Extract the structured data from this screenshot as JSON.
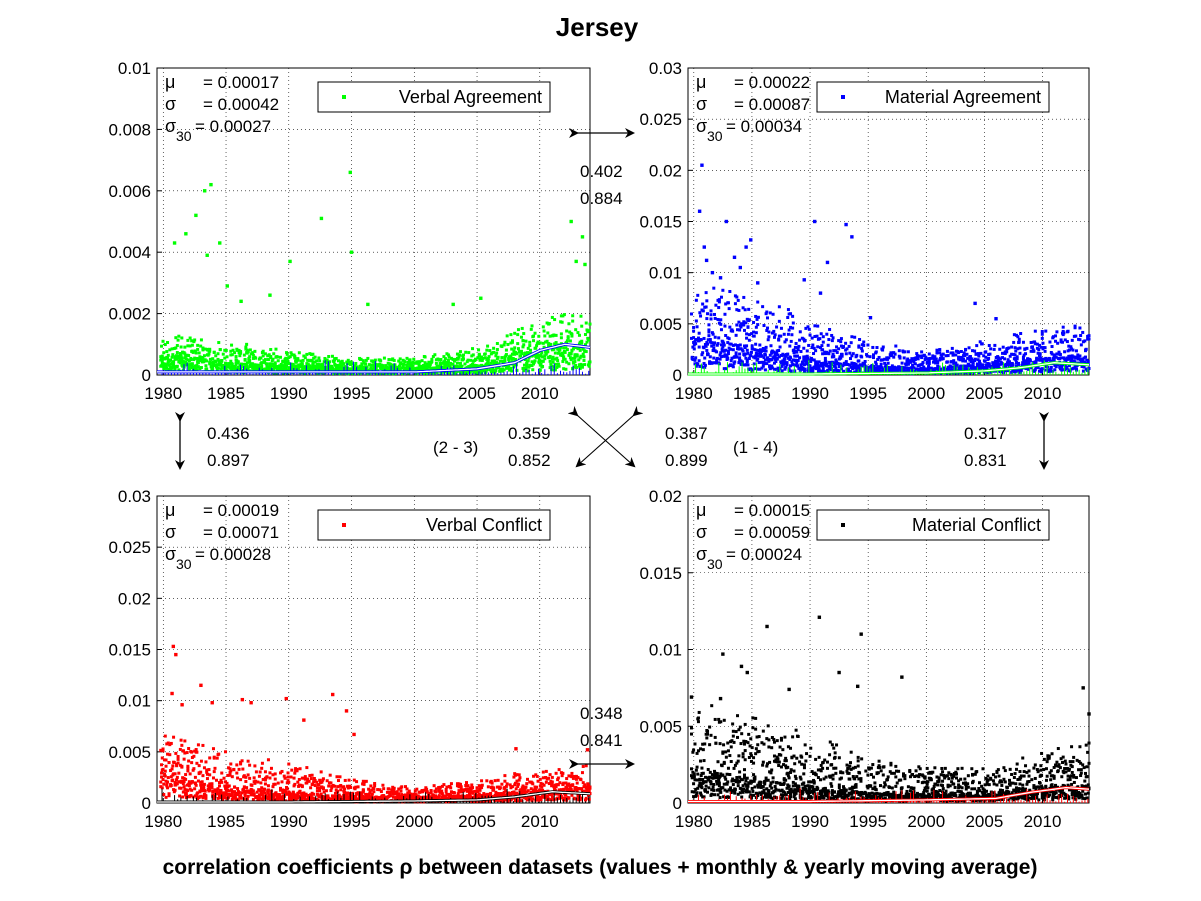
{
  "title": "Jersey",
  "caption": "correlation coefficients ρ between datasets (values + monthly & yearly moving average)",
  "colors": {
    "verbal_agreement": "#00ff00",
    "material_agreement": "#0000ff",
    "verbal_conflict": "#ff0000",
    "material_conflict": "#000000"
  },
  "correlations": {
    "va_ma": {
      "value": "0.402",
      "ma": "0.884"
    },
    "va_vc": {
      "value": "0.436",
      "ma": "0.897"
    },
    "ma_mc": {
      "value": "0.317",
      "ma": "0.831"
    },
    "vc_mc": {
      "value": "0.348",
      "ma": "0.841"
    },
    "diag_2_3": {
      "pair": "(2 - 3)",
      "value": "0.359",
      "ma": "0.852"
    },
    "diag_1_4": {
      "pair": "(1 - 4)",
      "value": "0.387",
      "ma": "0.899"
    }
  },
  "chart_data": [
    {
      "type": "scatter",
      "name": "Verbal Agreement",
      "color": "#00ff00",
      "overlay_color": "#0000ff",
      "xlim": [
        1979.5,
        2014
      ],
      "ylim": [
        0,
        0.01
      ],
      "x_ticks": [
        "1980",
        "1985",
        "1990",
        "1995",
        "2000",
        "2005",
        "2010"
      ],
      "y_ticks": [
        "0",
        "0.002",
        "0.004",
        "0.006",
        "0.008",
        "0.01"
      ],
      "y_tick_values": [
        0,
        0.002,
        0.004,
        0.006,
        0.008,
        0.01
      ],
      "stats": {
        "mu": "= 0.00017",
        "sigma": "= 0.00042",
        "sigma30": "= 0.00027"
      },
      "legend": "Verbal Agreement",
      "outliers": [
        [
          1980.9,
          0.0043
        ],
        [
          1981.8,
          0.0046
        ],
        [
          1982.6,
          0.0052
        ],
        [
          1983.3,
          0.006
        ],
        [
          1983.8,
          0.0062
        ],
        [
          1984.5,
          0.0043
        ],
        [
          1983.5,
          0.0039
        ],
        [
          1985.1,
          0.0029
        ],
        [
          1986.2,
          0.0024
        ],
        [
          1988.5,
          0.0026
        ],
        [
          1990.1,
          0.0037
        ],
        [
          1992.6,
          0.0051
        ],
        [
          1994.9,
          0.0066
        ],
        [
          1995.0,
          0.004
        ],
        [
          1996.3,
          0.0023
        ],
        [
          2003.1,
          0.0023
        ],
        [
          2005.3,
          0.0025
        ],
        [
          2012.5,
          0.005
        ],
        [
          2012.9,
          0.0037
        ],
        [
          2013.4,
          0.0045
        ],
        [
          2013.6,
          0.0036
        ]
      ],
      "bulk": [
        [
          1980,
          0.0006,
          0.0012
        ],
        [
          1985,
          0.0004,
          0.001
        ],
        [
          1990,
          0.0003,
          0.0007
        ],
        [
          1995,
          0.0002,
          0.0005
        ],
        [
          2000,
          0.0002,
          0.0005
        ],
        [
          2005,
          0.0003,
          0.0008
        ],
        [
          2010,
          0.0007,
          0.0016
        ],
        [
          2014,
          0.001,
          0.002
        ]
      ],
      "yearly_ma": [
        [
          1980,
          0.0001
        ],
        [
          1990,
          0.0001
        ],
        [
          2000,
          0.0001
        ],
        [
          2005,
          0.0002
        ],
        [
          2008,
          0.0004
        ],
        [
          2010,
          0.0008
        ],
        [
          2012,
          0.001
        ],
        [
          2014,
          0.0009
        ]
      ]
    },
    {
      "type": "scatter",
      "name": "Material Agreement",
      "color": "#0000ff",
      "overlay_color": "#00ff00",
      "xlim": [
        1979.5,
        2014
      ],
      "ylim": [
        0,
        0.03
      ],
      "x_ticks": [
        "1980",
        "1985",
        "1990",
        "1995",
        "2000",
        "2005",
        "2010"
      ],
      "y_ticks": [
        "0",
        "0.005",
        "0.01",
        "0.015",
        "0.02",
        "0.025",
        "0.03"
      ],
      "y_tick_values": [
        0,
        0.005,
        0.01,
        0.015,
        0.02,
        0.025,
        0.03
      ],
      "stats": {
        "mu": "= 0.00022",
        "sigma": "= 0.00087",
        "sigma30": "= 0.00034"
      },
      "legend": "Material Agreement",
      "outliers": [
        [
          1980.7,
          0.0205
        ],
        [
          1980.5,
          0.016
        ],
        [
          1980.9,
          0.0125
        ],
        [
          1981.1,
          0.0112
        ],
        [
          1981.6,
          0.01
        ],
        [
          1982.3,
          0.0095
        ],
        [
          1982.8,
          0.015
        ],
        [
          1983.5,
          0.0115
        ],
        [
          1984.0,
          0.0105
        ],
        [
          1984.5,
          0.0125
        ],
        [
          1984.9,
          0.0132
        ],
        [
          1985.5,
          0.009
        ],
        [
          1989.5,
          0.0093
        ],
        [
          1990.4,
          0.015
        ],
        [
          1990.9,
          0.008
        ],
        [
          1991.5,
          0.011
        ],
        [
          1993.1,
          0.0147
        ],
        [
          1993.6,
          0.0135
        ],
        [
          1995.2,
          0.0056
        ],
        [
          2004.2,
          0.007
        ],
        [
          2006.0,
          0.0055
        ]
      ],
      "bulk": [
        [
          1980,
          0.0035,
          0.009
        ],
        [
          1985,
          0.0025,
          0.007
        ],
        [
          1990,
          0.0015,
          0.005
        ],
        [
          1995,
          0.0008,
          0.003
        ],
        [
          2000,
          0.0006,
          0.002
        ],
        [
          2005,
          0.001,
          0.003
        ],
        [
          2010,
          0.0015,
          0.004
        ],
        [
          2014,
          0.0018,
          0.0045
        ]
      ],
      "yearly_ma": [
        [
          1980,
          0.0001
        ],
        [
          1990,
          0.0001
        ],
        [
          2000,
          0.0002
        ],
        [
          2005,
          0.0004
        ],
        [
          2008,
          0.0007
        ],
        [
          2011,
          0.0012
        ],
        [
          2014,
          0.001
        ]
      ]
    },
    {
      "type": "scatter",
      "name": "Verbal Conflict",
      "color": "#ff0000",
      "overlay_color": "#000000",
      "xlim": [
        1979.5,
        2014
      ],
      "ylim": [
        0,
        0.03
      ],
      "x_ticks": [
        "1980",
        "1985",
        "1990",
        "1995",
        "2000",
        "2005",
        "2010"
      ],
      "y_ticks": [
        "0",
        "0.005",
        "0.01",
        "0.015",
        "0.02",
        "0.025",
        "0.03"
      ],
      "y_tick_values": [
        0,
        0.005,
        0.01,
        0.015,
        0.02,
        0.025,
        0.03
      ],
      "stats": {
        "mu": "= 0.00019",
        "sigma": "= 0.00071",
        "sigma30": "= 0.00028"
      },
      "legend": "Verbal Conflict",
      "outliers": [
        [
          1980.8,
          0.0153
        ],
        [
          1981.0,
          0.0145
        ],
        [
          1980.7,
          0.0107
        ],
        [
          1981.5,
          0.0096
        ],
        [
          1983.0,
          0.0115
        ],
        [
          1983.9,
          0.0098
        ],
        [
          1986.3,
          0.0101
        ],
        [
          1987.0,
          0.0098
        ],
        [
          1989.8,
          0.0102
        ],
        [
          1991.2,
          0.0081
        ],
        [
          1993.5,
          0.0106
        ],
        [
          1994.6,
          0.009
        ],
        [
          1995.2,
          0.0067
        ],
        [
          2008.1,
          0.0053
        ],
        [
          2013.8,
          0.0052
        ]
      ],
      "bulk": [
        [
          1980,
          0.0025,
          0.006
        ],
        [
          1985,
          0.0015,
          0.0045
        ],
        [
          1990,
          0.001,
          0.0035
        ],
        [
          1995,
          0.0006,
          0.002
        ],
        [
          2000,
          0.0005,
          0.0015
        ],
        [
          2005,
          0.0007,
          0.002
        ],
        [
          2010,
          0.0012,
          0.003
        ],
        [
          2014,
          0.0015,
          0.0035
        ]
      ],
      "yearly_ma": [
        [
          1980,
          0.0001
        ],
        [
          1990,
          0.0001
        ],
        [
          2000,
          0.0002
        ],
        [
          2005,
          0.0003
        ],
        [
          2008,
          0.0006
        ],
        [
          2011,
          0.0011
        ],
        [
          2014,
          0.0009
        ]
      ]
    },
    {
      "type": "scatter",
      "name": "Material Conflict",
      "color": "#000000",
      "overlay_color": "#ff0000",
      "xlim": [
        1979.5,
        2014
      ],
      "ylim": [
        0,
        0.02
      ],
      "x_ticks": [
        "1980",
        "1985",
        "1990",
        "1995",
        "2000",
        "2005",
        "2010"
      ],
      "y_ticks": [
        "0",
        "0.005",
        "0.01",
        "0.015",
        "0.02"
      ],
      "y_tick_values": [
        0,
        0.005,
        0.01,
        0.015,
        0.02
      ],
      "stats": {
        "mu": "= 0.00015",
        "sigma": "= 0.00059",
        "sigma30": "= 0.00024"
      },
      "legend": "Material Conflict",
      "outliers": [
        [
          1979.8,
          0.0069
        ],
        [
          1982.5,
          0.0097
        ],
        [
          1982.3,
          0.0068
        ],
        [
          1984.1,
          0.0089
        ],
        [
          1984.6,
          0.0085
        ],
        [
          1986.3,
          0.0115
        ],
        [
          1988.2,
          0.0074
        ],
        [
          1990.8,
          0.0121
        ],
        [
          1992.5,
          0.0085
        ],
        [
          1994.1,
          0.0076
        ],
        [
          1994.4,
          0.011
        ],
        [
          1997.9,
          0.0082
        ],
        [
          2013.5,
          0.0075
        ],
        [
          2014.0,
          0.0058
        ]
      ],
      "bulk": [
        [
          1980,
          0.002,
          0.006
        ],
        [
          1985,
          0.0015,
          0.005
        ],
        [
          1990,
          0.001,
          0.004
        ],
        [
          1995,
          0.0006,
          0.0025
        ],
        [
          2000,
          0.0005,
          0.002
        ],
        [
          2005,
          0.0006,
          0.002
        ],
        [
          2010,
          0.001,
          0.003
        ],
        [
          2014,
          0.0012,
          0.0035
        ]
      ],
      "yearly_ma": [
        [
          1980,
          0.0001
        ],
        [
          1990,
          0.0001
        ],
        [
          2000,
          0.0002
        ],
        [
          2006,
          0.0003
        ],
        [
          2009,
          0.0007
        ],
        [
          2012,
          0.001
        ],
        [
          2014,
          0.0009
        ]
      ]
    }
  ]
}
